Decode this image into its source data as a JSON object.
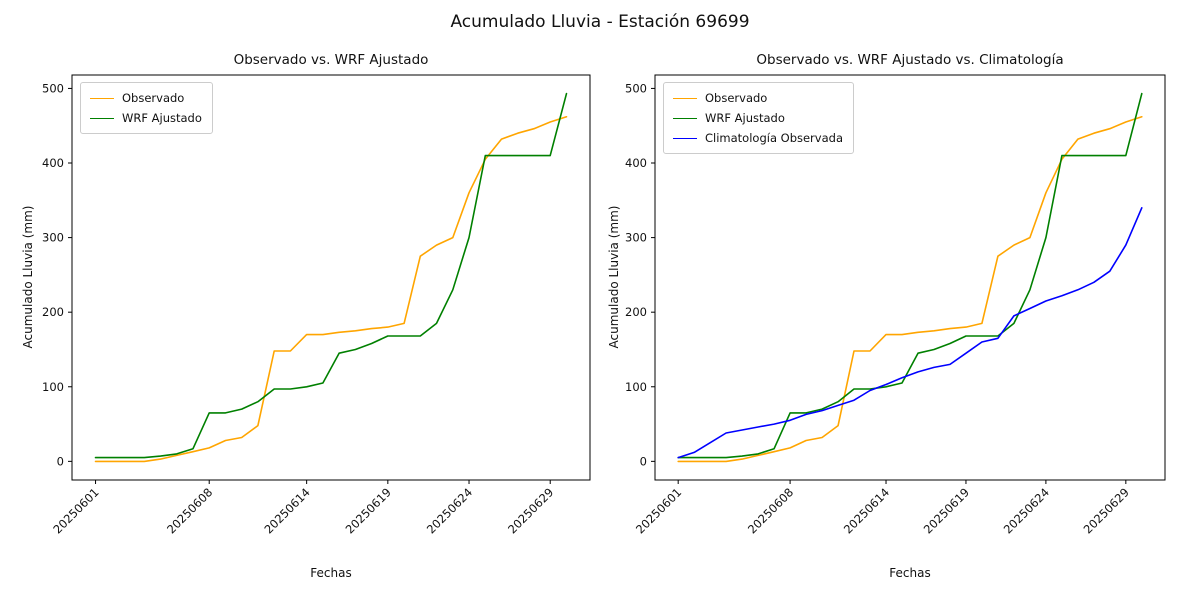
{
  "figure": {
    "title": "Acumulado Lluvia - Estación 69699"
  },
  "chart_data": [
    {
      "type": "line",
      "title": "Observado vs. WRF Ajustado",
      "xlabel": "Fechas",
      "ylabel": "Acumulado Lluvia (mm)",
      "grid": false,
      "legend_position": "upper left",
      "ylim": [
        -25,
        518
      ],
      "y_ticks": [
        0,
        100,
        200,
        300,
        400,
        500
      ],
      "x_tick_labels": [
        "20250601",
        "20250608",
        "20250614",
        "20250619",
        "20250624",
        "20250629"
      ],
      "x_tick_indices": [
        0,
        7,
        13,
        18,
        23,
        28
      ],
      "series": [
        {
          "name": "Observado",
          "color": "#FFA500",
          "values": [
            0,
            0,
            0,
            0,
            3,
            8,
            13,
            18,
            28,
            32,
            48,
            148,
            148,
            170,
            170,
            173,
            175,
            178,
            180,
            185,
            275,
            290,
            300,
            360,
            405,
            432,
            440,
            446,
            455,
            462
          ]
        },
        {
          "name": "WRF Ajustado",
          "color": "#008000",
          "values": [
            5,
            5,
            5,
            5,
            7,
            10,
            17,
            65,
            65,
            70,
            80,
            97,
            97,
            100,
            105,
            145,
            150,
            158,
            168,
            168,
            168,
            185,
            230,
            300,
            410,
            410,
            410,
            410,
            410,
            493
          ]
        }
      ]
    },
    {
      "type": "line",
      "title": "Observado vs. WRF Ajustado vs. Climatología",
      "xlabel": "Fechas",
      "ylabel": "Acumulado Lluvia (mm)",
      "grid": false,
      "legend_position": "upper left",
      "ylim": [
        -25,
        518
      ],
      "y_ticks": [
        0,
        100,
        200,
        300,
        400,
        500
      ],
      "x_tick_labels": [
        "20250601",
        "20250608",
        "20250614",
        "20250619",
        "20250624",
        "20250629"
      ],
      "x_tick_indices": [
        0,
        7,
        13,
        18,
        23,
        28
      ],
      "series": [
        {
          "name": "Observado",
          "color": "#FFA500",
          "values": [
            0,
            0,
            0,
            0,
            3,
            8,
            13,
            18,
            28,
            32,
            48,
            148,
            148,
            170,
            170,
            173,
            175,
            178,
            180,
            185,
            275,
            290,
            300,
            360,
            405,
            432,
            440,
            446,
            455,
            462
          ]
        },
        {
          "name": "WRF Ajustado",
          "color": "#008000",
          "values": [
            5,
            5,
            5,
            5,
            7,
            10,
            17,
            65,
            65,
            70,
            80,
            97,
            97,
            100,
            105,
            145,
            150,
            158,
            168,
            168,
            168,
            185,
            230,
            300,
            410,
            410,
            410,
            410,
            410,
            493
          ]
        },
        {
          "name": "Climatología Observada",
          "color": "#0000FF",
          "values": [
            5,
            12,
            25,
            38,
            42,
            46,
            50,
            55,
            63,
            68,
            75,
            82,
            95,
            103,
            112,
            120,
            126,
            130,
            145,
            160,
            165,
            195,
            205,
            215,
            222,
            230,
            240,
            255,
            290,
            340
          ]
        }
      ]
    }
  ]
}
